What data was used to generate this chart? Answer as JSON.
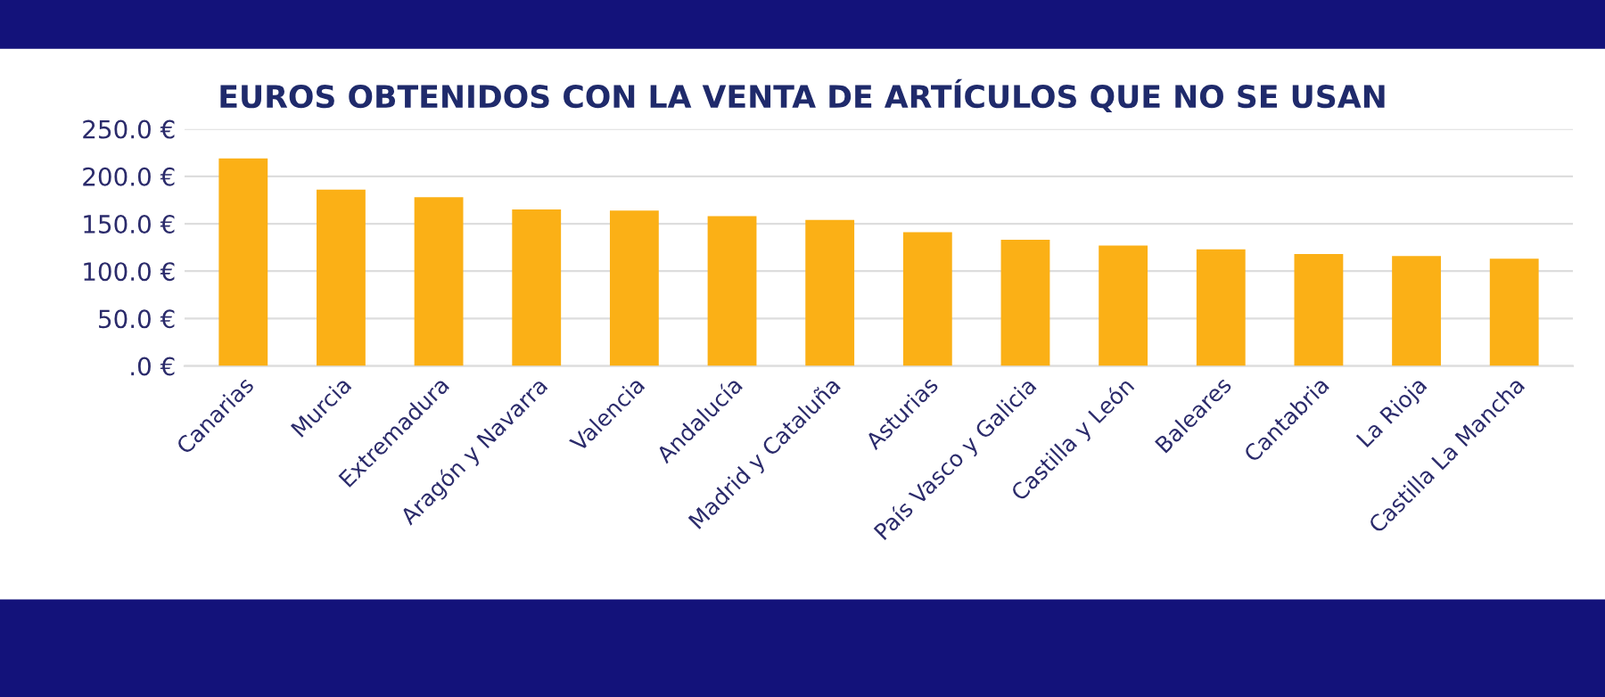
{
  "chart_data": {
    "type": "bar",
    "title": "EUROS OBTENIDOS CON LA VENTA DE ARTÍCULOS QUE NO SE USAN",
    "categories": [
      "Canarias",
      "Murcia",
      "Extremadura",
      "Aragón y Navarra",
      "Valencia",
      "Andalucía",
      "Madrid y Cataluña",
      "Asturias",
      "País Vasco y Galicia",
      "Castilla y León",
      "Baleares",
      "Cantabria",
      "La Rioja",
      "Castilla La Mancha"
    ],
    "values": [
      219,
      186,
      178,
      165,
      164,
      158,
      154,
      141,
      133,
      127,
      123,
      118,
      116,
      113
    ],
    "color": "#fbb016",
    "ylim": [
      0,
      250
    ],
    "yticks": [
      {
        "value": 0,
        "label": ".0 €"
      },
      {
        "value": 50,
        "label": "50.0 €"
      },
      {
        "value": 100,
        "label": "100.0 €"
      },
      {
        "value": 150,
        "label": "150.0 €"
      },
      {
        "value": 200,
        "label": "200.0 €"
      },
      {
        "value": 250,
        "label": "250.0 €"
      }
    ],
    "grid": "y",
    "legend": false
  }
}
